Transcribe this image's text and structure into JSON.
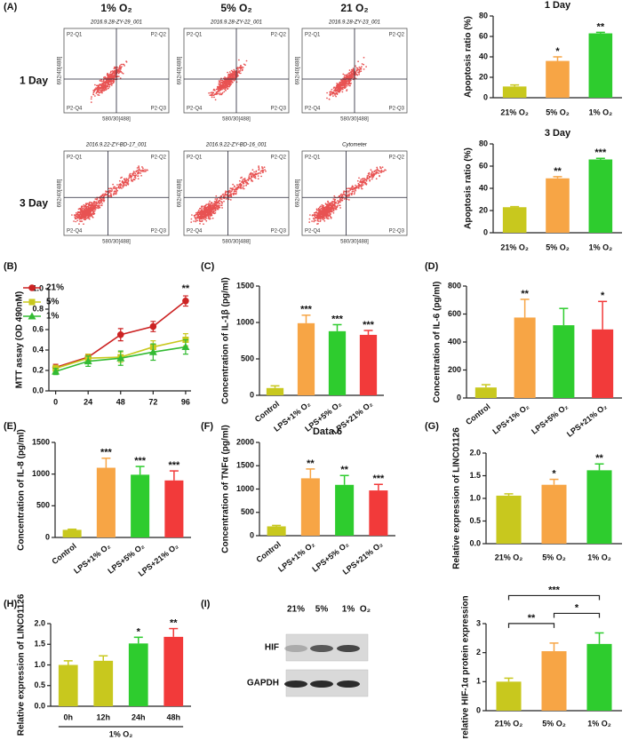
{
  "panel_labels": [
    "(A)",
    "(B)",
    "(C)",
    "(D)",
    "(E)",
    "(F)",
    "(G)",
    "(H)",
    "(I)"
  ],
  "flow_cytometry": {
    "columns": [
      "1% O₂",
      "5% O₂",
      "21 O₂"
    ],
    "rows": [
      "1 Day",
      "3 Day"
    ],
    "plots": [
      "2016.9.28-ZY-29_001",
      "2016.9.28-ZY-22_001",
      "2016.9.28-ZY-23_001",
      "2016.9.22-ZY-BD-17_001",
      "2016.9.22-ZY-BD-16_001",
      "Cytometer"
    ],
    "quadrants": [
      "P2-Q1",
      "P2-Q2",
      "P2-Q3",
      "P2-Q4"
    ],
    "xlabel": "580/30[488]",
    "ylabel": "692/40[488]"
  },
  "western_blot": {
    "lanes": [
      "21%",
      "5%",
      "1%"
    ],
    "unit": "O₂",
    "bands": [
      "HIF",
      "GAPDH"
    ]
  },
  "chart_data": [
    {
      "type": "bar",
      "title": "1 Day",
      "ylabel": "Apoptosis ratio (%)",
      "categories": [
        "21% O₂",
        "5% O₂",
        "1% O₂"
      ],
      "values": [
        11,
        36,
        63
      ],
      "errors": [
        1.5,
        4,
        1
      ],
      "significance": [
        null,
        "*",
        "**"
      ],
      "colors": [
        "#c8c81e",
        "#f7a545",
        "#2ecc2e"
      ],
      "ylim": [
        0,
        80
      ],
      "yticks": [
        0,
        20,
        40,
        60,
        80
      ]
    },
    {
      "type": "bar",
      "title": "3 Day",
      "ylabel": "Apoptosis ratio (%)",
      "categories": [
        "21% O₂",
        "5% O₂",
        "1% O₂"
      ],
      "values": [
        23,
        49,
        66
      ],
      "errors": [
        0.5,
        1.5,
        1
      ],
      "significance": [
        null,
        "**",
        "***"
      ],
      "colors": [
        "#c8c81e",
        "#f7a545",
        "#2ecc2e"
      ],
      "ylim": [
        0,
        80
      ],
      "yticks": [
        0,
        20,
        40,
        60,
        80
      ]
    },
    {
      "type": "line",
      "ylabel": "MTT assay (OD 490nM)",
      "x": [
        0,
        24,
        48,
        72,
        96
      ],
      "xlim": [
        -5,
        100
      ],
      "xticks": [
        0,
        24,
        48,
        72,
        96
      ],
      "ylim": [
        0,
        1
      ],
      "yticks": [
        {
          "value": 0,
          "label": "0.0"
        },
        0.2,
        0.4,
        0.6,
        0.8,
        {
          "value": 1,
          "label": "1.0"
        }
      ],
      "series": [
        {
          "name": "21%",
          "color": "#cc2222",
          "marker": "circle",
          "values": [
            0.23,
            0.33,
            0.55,
            0.63,
            0.88
          ],
          "errors": [
            0.03,
            0.03,
            0.06,
            0.05,
            0.05
          ]
        },
        {
          "name": "5%",
          "color": "#c8c81e",
          "marker": "square",
          "values": [
            0.22,
            0.32,
            0.33,
            0.43,
            0.5
          ],
          "errors": [
            0.03,
            0.04,
            0.05,
            0.06,
            0.06
          ]
        },
        {
          "name": "1%",
          "color": "#33bb33",
          "marker": "triangle",
          "values": [
            0.19,
            0.29,
            0.32,
            0.38,
            0.43
          ],
          "errors": [
            0.03,
            0.05,
            0.07,
            0.08,
            0.07
          ]
        }
      ],
      "annotations": [
        {
          "x": 96,
          "text": "**"
        }
      ]
    },
    {
      "type": "bar",
      "ylabel": "Concentration of IL-1β (pg/ml)",
      "categories": [
        "Control",
        "LPS+1% O₂",
        "LPS+5% O₂",
        "LPS+21% O₂"
      ],
      "values": [
        100,
        990,
        880,
        830
      ],
      "errors": [
        30,
        110,
        90,
        60
      ],
      "significance": [
        null,
        "***",
        "***",
        "***"
      ],
      "colors": [
        "#c8c81e",
        "#f7a545",
        "#2ecc2e",
        "#f23a3a"
      ],
      "ylim": [
        0,
        1500
      ],
      "yticks": [
        0,
        500,
        1000,
        1500
      ],
      "rotate_labels": true
    },
    {
      "type": "bar",
      "ylabel": "Concentration of IL-6 (pg/ml)",
      "categories": [
        "Control",
        "LPS+1% O₂",
        "LPS+5% O₂",
        "LPS+21% O₂"
      ],
      "values": [
        75,
        575,
        520,
        490
      ],
      "errors": [
        20,
        130,
        120,
        200
      ],
      "significance": [
        null,
        "**",
        null,
        "*"
      ],
      "colors": [
        "#c8c81e",
        "#f7a545",
        "#2ecc2e",
        "#f23a3a"
      ],
      "ylim": [
        0,
        800
      ],
      "yticks": [
        0,
        200,
        400,
        600,
        800
      ],
      "rotate_labels": true
    },
    {
      "type": "bar",
      "ylabel": "Concentration of IL-8 (pg/ml)",
      "categories": [
        "Control",
        "LPS+1% O₂",
        "LPS+5% O₂",
        "LPS+21% O₂"
      ],
      "values": [
        120,
        1100,
        990,
        900
      ],
      "errors": [
        10,
        150,
        130,
        150
      ],
      "significance": [
        null,
        "***",
        "***",
        "***"
      ],
      "colors": [
        "#c8c81e",
        "#f7a545",
        "#2ecc2e",
        "#f23a3a"
      ],
      "ylim": [
        0,
        1500
      ],
      "yticks": [
        0,
        500,
        1000,
        1500
      ],
      "rotate_labels": true
    },
    {
      "type": "bar",
      "title": "Data 6",
      "ylabel": "Concentration of TNFα (pg/ml)",
      "categories": [
        "Control",
        "LPS+1% O₂",
        "LPS+5% O₂",
        "LPS+21% O₂"
      ],
      "values": [
        200,
        1230,
        1090,
        970
      ],
      "errors": [
        20,
        200,
        200,
        130
      ],
      "significance": [
        null,
        "**",
        "**",
        "***"
      ],
      "colors": [
        "#c8c81e",
        "#f7a545",
        "#2ecc2e",
        "#f23a3a"
      ],
      "ylim": [
        0,
        2000
      ],
      "yticks": [
        0,
        500,
        1000,
        1500,
        2000
      ],
      "rotate_labels": true
    },
    {
      "type": "bar",
      "ylabel": "Relative expression of LINC01126",
      "categories": [
        "21% O₂",
        "5% O₂",
        "1% O₂"
      ],
      "values": [
        1.06,
        1.3,
        1.62
      ],
      "errors": [
        0.04,
        0.12,
        0.14
      ],
      "significance": [
        null,
        "*",
        "**"
      ],
      "colors": [
        "#c8c81e",
        "#f7a545",
        "#2ecc2e"
      ],
      "ylim": [
        0,
        2
      ],
      "yticks": [
        {
          "value": 0,
          "label": "0.0"
        },
        0.5,
        {
          "value": 1,
          "label": "1.0"
        },
        1.5,
        {
          "value": 2,
          "label": "2.0"
        }
      ]
    },
    {
      "type": "bar",
      "ylabel": "Relative expression of LINC01126",
      "xlabel": "1% O₂",
      "categories": [
        "0h",
        "12h",
        "24h",
        "48h"
      ],
      "values": [
        1.0,
        1.1,
        1.52,
        1.68
      ],
      "errors": [
        0.1,
        0.12,
        0.15,
        0.2
      ],
      "significance": [
        null,
        null,
        "*",
        "**"
      ],
      "colors": [
        "#c8c81e",
        "#c8c81e",
        "#2ecc2e",
        "#f23a3a"
      ],
      "ylim": [
        0,
        2
      ],
      "yticks": [
        {
          "value": 0,
          "label": "0.0"
        },
        0.5,
        {
          "value": 1,
          "label": "1.0"
        },
        1.5,
        {
          "value": 2,
          "label": "2.0"
        }
      ]
    },
    {
      "type": "bar",
      "ylabel": "relative HIF-1α protein expression",
      "categories": [
        "21% O₂",
        "5% O₂",
        "1% O₂"
      ],
      "values": [
        1.0,
        2.05,
        2.3
      ],
      "errors": [
        0.12,
        0.28,
        0.38
      ],
      "colors": [
        "#c8c81e",
        "#f7a545",
        "#2ecc2e"
      ],
      "ylim": [
        0,
        3
      ],
      "yticks": [
        0,
        1,
        2,
        3
      ],
      "comparisons": [
        {
          "pair": [
            0,
            1
          ],
          "label": "**"
        },
        {
          "pair": [
            1,
            2
          ],
          "label": "*"
        },
        {
          "pair": [
            0,
            2
          ],
          "label": "***"
        }
      ]
    }
  ]
}
